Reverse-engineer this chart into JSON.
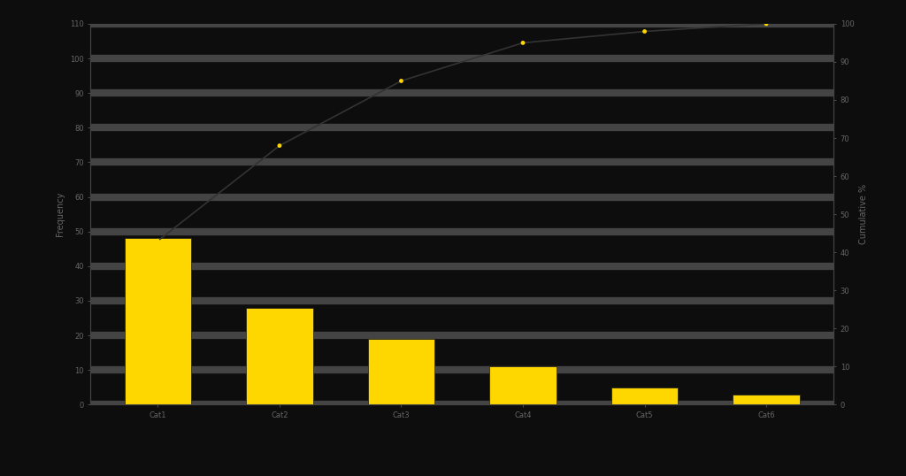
{
  "categories": [
    "Cat1",
    "Cat2",
    "Cat3",
    "Cat4",
    "Cat5",
    "Cat6"
  ],
  "values": [
    48,
    28,
    19,
    11,
    5,
    3
  ],
  "cumulative_pct": [
    43.0,
    68.0,
    85.0,
    95.0,
    98.0,
    100.0
  ],
  "bar_color": "#FFD700",
  "bar_edge_color": "#1a1a1a",
  "line_color": "#333333",
  "dot_color": "#FFD700",
  "background_color": "#0d0d0d",
  "axes_facecolor": "#0d0d0d",
  "grid_color": "#444444",
  "grid_linewidth": 6,
  "tick_color": "#666666",
  "label_color": "#666666",
  "spine_color": "#444444",
  "ylabel_left": "Frequency",
  "ylabel_right": "Cumulative %",
  "ylim_left": [
    0,
    110
  ],
  "ylim_right": [
    0,
    100
  ],
  "yticks_left": [
    0,
    10,
    20,
    30,
    40,
    50,
    60,
    70,
    80,
    90,
    100,
    110
  ],
  "yticks_right": [
    0,
    10,
    20,
    30,
    40,
    50,
    60,
    70,
    80,
    90,
    100
  ],
  "figsize": [
    10.24,
    5.38
  ],
  "dpi": 100
}
